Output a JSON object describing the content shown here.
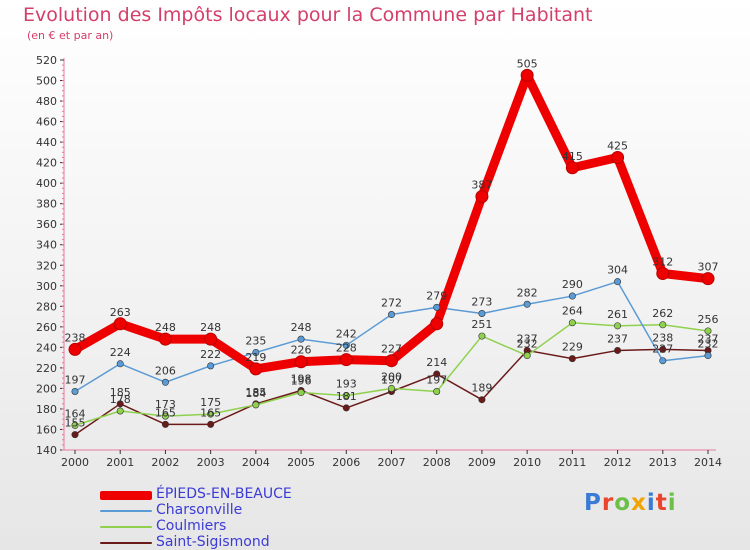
{
  "title": "Evolution des Impôts locaux pour la Commune par Habitant",
  "subtitle": "(en € et par an)",
  "brand": {
    "letters": [
      {
        "ch": "P",
        "color": "#3a7bd5"
      },
      {
        "ch": "r",
        "color": "#e8452c"
      },
      {
        "ch": "o",
        "color": "#6cc04a"
      },
      {
        "ch": "x",
        "color": "#f0a500"
      },
      {
        "ch": "i",
        "color": "#3a7bd5"
      },
      {
        "ch": "t",
        "color": "#e8452c"
      },
      {
        "ch": "i",
        "color": "#6cc04a"
      }
    ]
  },
  "chart_data": {
    "type": "line",
    "title": "Evolution des Impôts locaux pour la Commune par Habitant",
    "subtitle": "(en € et par an)",
    "x": [
      2000,
      2001,
      2002,
      2003,
      2004,
      2005,
      2006,
      2007,
      2008,
      2009,
      2010,
      2011,
      2012,
      2013,
      2014
    ],
    "ylim": [
      140,
      520
    ],
    "yticks": [
      140,
      160,
      180,
      200,
      220,
      240,
      260,
      280,
      300,
      320,
      340,
      360,
      380,
      400,
      420,
      440,
      460,
      480,
      500,
      520
    ],
    "grid": false,
    "legend_position": "bottom-left",
    "series": [
      {
        "name": "ÉPIEDS-EN-BEAUCE",
        "color": "#ee0000",
        "values": [
          238,
          263,
          248,
          248,
          219,
          226,
          228,
          227,
          263,
          387,
          505,
          415,
          425,
          312,
          307
        ],
        "labels": [
          "238",
          "263",
          "248",
          "248",
          "219",
          "226",
          "228",
          "227",
          "",
          "387",
          "505",
          "415",
          "425",
          "312",
          "307"
        ]
      },
      {
        "name": "Charsonville",
        "color": "#5b9bd5",
        "values": [
          197,
          224,
          206,
          222,
          235,
          248,
          242,
          272,
          279,
          273,
          282,
          290,
          304,
          227,
          232
        ],
        "labels": [
          "197",
          "224",
          "206",
          "222",
          "235",
          "248",
          "242",
          "272",
          "279",
          "273",
          "282",
          "290",
          "304",
          "227",
          "232"
        ]
      },
      {
        "name": "Coulmiers",
        "color": "#8fd14f",
        "values": [
          164,
          178,
          173,
          175,
          184,
          196,
          193,
          200,
          197,
          251,
          232,
          264,
          261,
          262,
          256
        ],
        "labels": [
          "164",
          "178",
          "173",
          "175",
          "184",
          "196",
          "193",
          "200",
          "197",
          "251",
          "232",
          "264",
          "261",
          "262",
          "256"
        ]
      },
      {
        "name": "Saint-Sigismond",
        "color": "#6b1a1a",
        "values": [
          155,
          185,
          165,
          165,
          185,
          198,
          181,
          197,
          214,
          189,
          237,
          229,
          237,
          238,
          237
        ],
        "labels": [
          "155",
          "185",
          "165",
          "165",
          "185",
          "198",
          "181",
          "197",
          "214",
          "189",
          "237",
          "229",
          "237",
          "238",
          "237"
        ]
      }
    ]
  }
}
